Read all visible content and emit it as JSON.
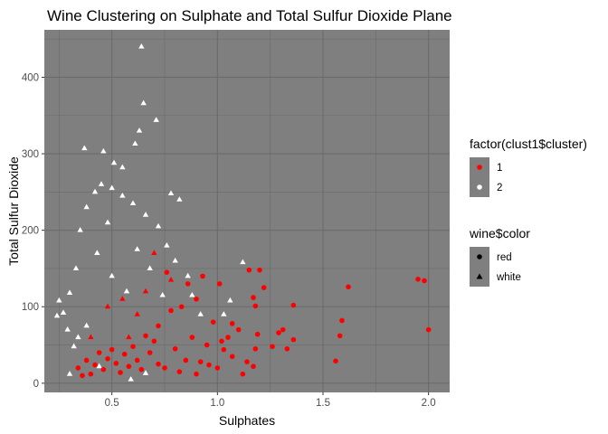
{
  "chart_data": {
    "type": "scatter",
    "title": "Wine Clustering on Sulphate and Total Sulfur Dioxide Plane",
    "xlabel": "Sulphates",
    "ylabel": "Total Sulfur Dioxide",
    "xlim": [
      0.18,
      2.1
    ],
    "ylim": [
      -12,
      462
    ],
    "xticks": [
      0.5,
      1.0,
      1.5,
      2.0
    ],
    "xtick_labels": [
      "0.5",
      "1.0",
      "1.5",
      "2.0"
    ],
    "yticks": [
      0,
      100,
      200,
      300,
      400
    ],
    "ytick_labels": [
      "0",
      "100",
      "200",
      "300",
      "400"
    ],
    "grid": true,
    "panel_background": "#7f7f7f",
    "legend_position": "right",
    "legends": [
      {
        "title": "factor(clust1$cluster)",
        "entries": [
          {
            "label": "1",
            "color": "#ff0000",
            "shape": "circle"
          },
          {
            "label": "2",
            "color": "#ffffff",
            "shape": "circle"
          }
        ]
      },
      {
        "title": "wine$color",
        "entries": [
          {
            "label": "red",
            "color": "#000000",
            "shape": "circle"
          },
          {
            "label": "white",
            "color": "#000000",
            "shape": "triangle"
          }
        ]
      }
    ],
    "series": [
      {
        "cluster": "1",
        "color": "#ff0000",
        "points": [
          [
            1.95,
            136,
            "red"
          ],
          [
            1.98,
            134,
            "red"
          ],
          [
            2.0,
            70,
            "red"
          ],
          [
            1.62,
            126,
            "red"
          ],
          [
            1.59,
            82,
            "red"
          ],
          [
            1.56,
            29,
            "red"
          ],
          [
            1.58,
            62,
            "red"
          ],
          [
            1.36,
            102,
            "red"
          ],
          [
            1.36,
            57,
            "red"
          ],
          [
            1.33,
            45,
            "red"
          ],
          [
            1.31,
            70,
            "red"
          ],
          [
            1.29,
            66,
            "red"
          ],
          [
            1.26,
            48,
            "red"
          ],
          [
            1.2,
            148,
            "red"
          ],
          [
            1.15,
            148,
            "red"
          ],
          [
            1.17,
            112,
            "red"
          ],
          [
            1.18,
            101,
            "red"
          ],
          [
            1.22,
            125,
            "red"
          ],
          [
            1.19,
            64,
            "red"
          ],
          [
            1.18,
            45,
            "red"
          ],
          [
            1.17,
            22,
            "red"
          ],
          [
            1.14,
            28,
            "red"
          ],
          [
            1.1,
            70,
            "red"
          ],
          [
            1.07,
            78,
            "red"
          ],
          [
            1.05,
            60,
            "red"
          ],
          [
            1.03,
            44,
            "red"
          ],
          [
            1.0,
            20,
            "red"
          ],
          [
            1.01,
            130,
            "red"
          ],
          [
            1.02,
            55,
            "red"
          ],
          [
            1.07,
            35,
            "red"
          ],
          [
            0.98,
            80,
            "red"
          ],
          [
            0.95,
            50,
            "red"
          ],
          [
            0.93,
            140,
            "red"
          ],
          [
            0.92,
            28,
            "red"
          ],
          [
            0.9,
            110,
            "red"
          ],
          [
            0.88,
            60,
            "red"
          ],
          [
            0.86,
            130,
            "red"
          ],
          [
            0.85,
            30,
            "red"
          ],
          [
            0.83,
            100,
            "red"
          ],
          [
            0.8,
            45,
            "red"
          ],
          [
            0.78,
            95,
            "red"
          ],
          [
            0.76,
            145,
            "red"
          ],
          [
            0.75,
            20,
            "red"
          ],
          [
            0.72,
            75,
            "red"
          ],
          [
            0.7,
            55,
            "red"
          ],
          [
            0.68,
            40,
            "red"
          ],
          [
            0.66,
            62,
            "red"
          ],
          [
            0.64,
            18,
            "red"
          ],
          [
            0.62,
            30,
            "red"
          ],
          [
            0.6,
            48,
            "red"
          ],
          [
            0.58,
            22,
            "red"
          ],
          [
            0.56,
            38,
            "red"
          ],
          [
            0.54,
            14,
            "red"
          ],
          [
            0.52,
            26,
            "red"
          ],
          [
            0.5,
            44,
            "red"
          ],
          [
            0.48,
            32,
            "red"
          ],
          [
            0.46,
            18,
            "red"
          ],
          [
            0.44,
            40,
            "red"
          ],
          [
            0.42,
            24,
            "red"
          ],
          [
            0.4,
            12,
            "red"
          ],
          [
            0.38,
            30,
            "red"
          ],
          [
            0.36,
            10,
            "red"
          ],
          [
            0.34,
            20,
            "red"
          ],
          [
            0.72,
            25,
            "red"
          ],
          [
            0.82,
            15,
            "red"
          ],
          [
            0.9,
            12,
            "red"
          ],
          [
            0.96,
            24,
            "red"
          ],
          [
            1.12,
            12,
            "red"
          ],
          [
            0.55,
            110,
            "white"
          ],
          [
            0.62,
            90,
            "white"
          ],
          [
            0.7,
            170,
            "white"
          ],
          [
            0.48,
            100,
            "white"
          ],
          [
            0.66,
            120,
            "white"
          ],
          [
            0.4,
            60,
            "white"
          ],
          [
            0.78,
            135,
            "white"
          ],
          [
            0.58,
            60,
            "white"
          ]
        ]
      },
      {
        "cluster": "2",
        "color": "#ffffff",
        "points": [
          [
            0.64,
            440,
            "white"
          ],
          [
            0.65,
            366,
            "white"
          ],
          [
            0.71,
            344,
            "white"
          ],
          [
            0.63,
            330,
            "white"
          ],
          [
            0.61,
            313,
            "white"
          ],
          [
            0.37,
            307,
            "white"
          ],
          [
            0.46,
            303,
            "white"
          ],
          [
            0.51,
            288,
            "white"
          ],
          [
            0.55,
            282,
            "white"
          ],
          [
            0.78,
            248,
            "white"
          ],
          [
            0.82,
            240,
            "white"
          ],
          [
            0.25,
            108,
            "white"
          ],
          [
            0.27,
            92,
            "white"
          ],
          [
            0.24,
            88,
            "white"
          ],
          [
            0.29,
            70,
            "white"
          ],
          [
            0.3,
            118,
            "white"
          ],
          [
            0.33,
            150,
            "white"
          ],
          [
            0.35,
            200,
            "white"
          ],
          [
            0.38,
            230,
            "white"
          ],
          [
            0.42,
            250,
            "white"
          ],
          [
            0.45,
            260,
            "white"
          ],
          [
            0.5,
            255,
            "white"
          ],
          [
            0.55,
            245,
            "white"
          ],
          [
            0.6,
            235,
            "white"
          ],
          [
            0.66,
            220,
            "white"
          ],
          [
            0.72,
            205,
            "white"
          ],
          [
            0.76,
            180,
            "white"
          ],
          [
            0.8,
            160,
            "white"
          ],
          [
            0.86,
            140,
            "white"
          ],
          [
            0.88,
            115,
            "white"
          ],
          [
            0.92,
            90,
            "white"
          ],
          [
            1.12,
            158,
            "white"
          ],
          [
            1.06,
            108,
            "white"
          ],
          [
            1.03,
            90,
            "white"
          ],
          [
            0.38,
            75,
            "white"
          ],
          [
            0.34,
            60,
            "white"
          ],
          [
            0.32,
            48,
            "white"
          ],
          [
            0.3,
            12,
            "white"
          ],
          [
            0.44,
            22,
            "white"
          ],
          [
            0.66,
            13,
            "white"
          ],
          [
            0.59,
            5,
            "white"
          ],
          [
            0.43,
            170,
            "white"
          ],
          [
            0.5,
            140,
            "white"
          ],
          [
            0.57,
            120,
            "white"
          ],
          [
            0.62,
            175,
            "white"
          ],
          [
            0.68,
            150,
            "white"
          ],
          [
            0.74,
            115,
            "white"
          ],
          [
            0.48,
            210,
            "white"
          ]
        ]
      }
    ]
  }
}
